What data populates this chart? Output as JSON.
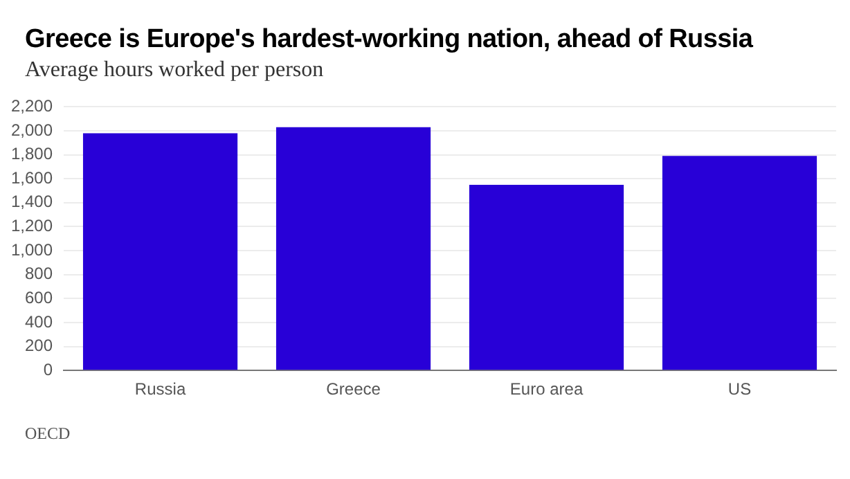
{
  "chart_data": {
    "type": "bar",
    "title": "Greece is Europe's hardest-working nation, ahead of Russia",
    "subtitle": "Average hours worked per person",
    "categories": [
      "Russia",
      "Greece",
      "Euro area",
      "US"
    ],
    "values": [
      1980,
      2030,
      1550,
      1790
    ],
    "color": "#2800d7",
    "ylim": [
      0,
      2200
    ],
    "yticks": [
      0,
      200,
      400,
      600,
      800,
      {
        "value": 1000,
        "label": "1,000"
      },
      {
        "value": 1200,
        "label": "1,200"
      },
      {
        "value": 1400,
        "label": "1,400"
      },
      {
        "value": 1600,
        "label": "1,600"
      },
      {
        "value": 1800,
        "label": "1,800"
      },
      {
        "value": 2000,
        "label": "2,000"
      },
      {
        "value": 2200,
        "label": "2,200"
      }
    ],
    "grid": "y",
    "annotations": [
      "OECD"
    ]
  }
}
